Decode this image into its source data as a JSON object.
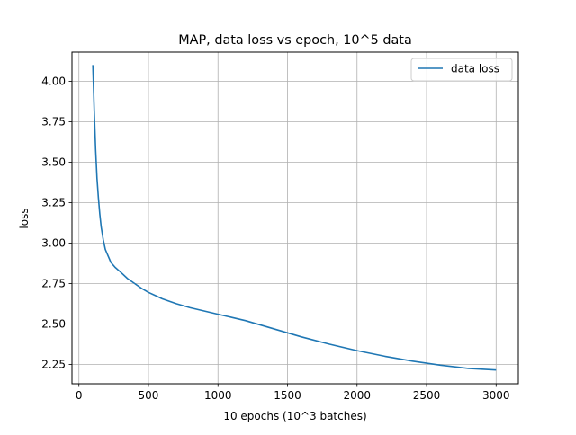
{
  "chart_data": {
    "type": "line",
    "title": "MAP, data loss vs epoch, 10^5 data",
    "xlabel": "10 epochs (10^3 batches)",
    "ylabel": "loss",
    "xlim": [
      -50,
      3160
    ],
    "ylim": [
      2.13,
      4.18
    ],
    "xticks": [
      0,
      500,
      1000,
      1500,
      2000,
      2500,
      3000
    ],
    "yticks": [
      2.25,
      2.5,
      2.75,
      3.0,
      3.25,
      3.5,
      3.75,
      4.0
    ],
    "xtick_labels": [
      "0",
      "500",
      "1000",
      "1500",
      "2000",
      "2500",
      "3000"
    ],
    "ytick_labels": [
      "2.25",
      "2.50",
      "2.75",
      "3.00",
      "3.25",
      "3.50",
      "3.75",
      "4.00"
    ],
    "grid": true,
    "legend_position": "upper right",
    "colors": {
      "line": "#1f77b4",
      "grid": "#b0b0b0",
      "axes": "#000000"
    },
    "series": [
      {
        "name": "data loss",
        "x": [
          100,
          110,
          120,
          130,
          140,
          150,
          160,
          175,
          190,
          210,
          230,
          260,
          300,
          350,
          400,
          450,
          500,
          550,
          600,
          700,
          800,
          900,
          1000,
          1100,
          1200,
          1300,
          1400,
          1500,
          1600,
          1800,
          2000,
          2200,
          2400,
          2600,
          2800,
          3000
        ],
        "y": [
          4.1,
          3.82,
          3.58,
          3.4,
          3.28,
          3.18,
          3.1,
          3.02,
          2.96,
          2.92,
          2.88,
          2.85,
          2.82,
          2.78,
          2.75,
          2.72,
          2.695,
          2.675,
          2.655,
          2.625,
          2.6,
          2.58,
          2.56,
          2.54,
          2.52,
          2.495,
          2.47,
          2.445,
          2.42,
          2.375,
          2.335,
          2.3,
          2.27,
          2.245,
          2.225,
          2.215
        ]
      }
    ]
  }
}
